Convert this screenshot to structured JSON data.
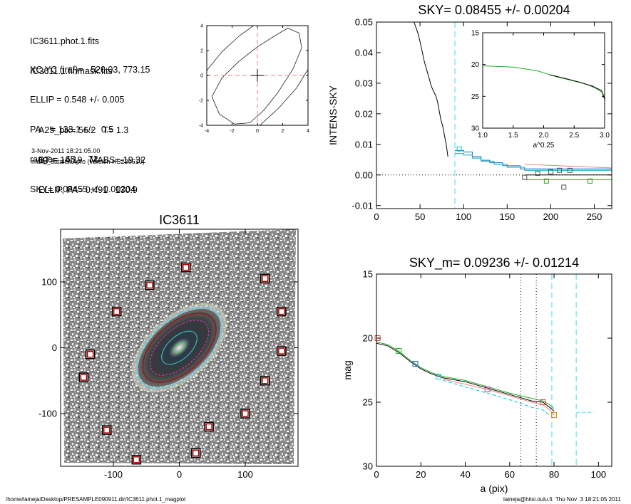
{
  "info": {
    "lines1": [
      "IC3611.phot.1.fits",
      "IC3611.1.finmask.fits"
    ],
    "lines2": [
      "XC,YC (iraf)=   520.03, 773.15",
      "ELLIP = 0.548 +/- 0.005",
      "PA    = 133.1 +/-   0.5",
      "range=   65.-   72.",
      "SKY= 0.08455 +/- 0.00204"
    ],
    "lines3": [
      "A25_pix= 56.2   T= 1.3",
      "BT=  14.19   MABS=-19.32",
      "ELLIP, PA= 0.491   130.9"
    ],
    "date": "3-Nov-2011 18:21:05.00",
    "program": "make_datalist0.pro (version HS230610)"
  },
  "footer": {
    "left": "/home/laineja/Desktop/PRESAMPLE090911.dir/IC3611.phot.1_magplot",
    "right": "laineja@hiisi.oulu.fi  Thu Nov  3 18:21:05 2011"
  },
  "chart_data": [
    {
      "id": "ellipse-contour",
      "type": "line",
      "title": "",
      "xlim": [
        -4,
        4
      ],
      "ylim": [
        -4,
        4
      ],
      "xticks": [
        "-4",
        "-2",
        "0",
        "2",
        "4"
      ],
      "yticks": [
        "-4",
        "-2",
        "0",
        "2",
        "4"
      ],
      "series": [
        {
          "points": [
            [
              -3.6,
              -1.7
            ],
            [
              -2.8,
              -0.2
            ],
            [
              -1.5,
              1.1
            ],
            [
              0,
              2.3
            ],
            [
              1.4,
              3.2
            ],
            [
              2.4,
              3.8
            ],
            [
              3.3,
              3.4
            ],
            [
              3.5,
              2.2
            ],
            [
              2.8,
              0.5
            ],
            [
              1.6,
              -1.4
            ],
            [
              0.5,
              -2.8
            ],
            [
              -0.6,
              -3.8
            ],
            [
              -1.8,
              -3.9
            ],
            [
              -3.0,
              -3.1
            ],
            [
              -3.6,
              -1.7
            ]
          ]
        },
        {
          "points": [
            [
              -4,
              0.4
            ],
            [
              -2.8,
              1.9
            ],
            [
              -1.4,
              3.2
            ],
            [
              -0.3,
              4.0
            ]
          ]
        },
        {
          "points": [
            [
              0.2,
              -4.0
            ],
            [
              1.7,
              -2.6
            ],
            [
              3.1,
              -1.0
            ],
            [
              4.0,
              0.5
            ]
          ]
        }
      ]
    },
    {
      "id": "intens-sky",
      "type": "line",
      "title": "SKY= 0.08455 +/- 0.00204",
      "ylabel": "INTENS-SKY",
      "xlim": [
        0,
        270
      ],
      "ylim": [
        -0.011,
        0.05
      ],
      "xticks": [
        "0",
        "50",
        "100",
        "150",
        "200",
        "250"
      ],
      "yticks": [
        "-0.01",
        "0.00",
        "0.01",
        "0.02",
        "0.03",
        "0.04",
        "0.05"
      ],
      "series": [
        {
          "color": "#000000",
          "points": [
            [
              43,
              0.05
            ],
            [
              48,
              0.046
            ],
            [
              52,
              0.041
            ],
            [
              55,
              0.037
            ],
            [
              58,
              0.034
            ],
            [
              61,
              0.031
            ],
            [
              63,
              0.029
            ],
            [
              66,
              0.027
            ],
            [
              68,
              0.026
            ],
            [
              70,
              0.024
            ],
            [
              72,
              0.021
            ],
            [
              74,
              0.018
            ],
            [
              76,
              0.016
            ],
            [
              78,
              0.013
            ],
            [
              80,
              0.01
            ],
            [
              82,
              0.006
            ]
          ]
        },
        {
          "color": "#1a66cc",
          "points": [
            [
              90,
              0.008
            ],
            [
              100,
              0.008
            ],
            [
              100,
              0.0075
            ],
            [
              110,
              0.0075
            ],
            [
              110,
              0.006
            ],
            [
              120,
              0.006
            ],
            [
              120,
              0.0048
            ],
            [
              130,
              0.0048
            ],
            [
              130,
              0.004
            ],
            [
              145,
              0.004
            ],
            [
              145,
              0.003
            ],
            [
              165,
              0.003
            ],
            [
              165,
              0.002
            ],
            [
              270,
              0.002
            ]
          ]
        },
        {
          "color": "#00aaaa",
          "points": [
            [
              90,
              0.007
            ],
            [
              100,
              0.007
            ],
            [
              100,
              0.0065
            ],
            [
              110,
              0.0065
            ],
            [
              110,
              0.0055
            ],
            [
              120,
              0.0055
            ],
            [
              120,
              0.0045
            ],
            [
              135,
              0.0045
            ],
            [
              135,
              0.0035
            ],
            [
              150,
              0.0035
            ],
            [
              150,
              0.0025
            ],
            [
              170,
              0.0025
            ],
            [
              170,
              0.0015
            ],
            [
              270,
              0.0015
            ]
          ]
        },
        {
          "color": "#f08080",
          "points": [
            [
              170,
              0.0035
            ],
            [
              270,
              0.0023
            ]
          ]
        },
        {
          "color": "#000000",
          "points": [
            [
              170,
              0.0
            ],
            [
              270,
              0.0
            ]
          ]
        },
        {
          "color": "#22aa22",
          "points": [
            [
              170,
              -0.0015
            ],
            [
              270,
              -0.0015
            ]
          ]
        }
      ],
      "markers": [
        {
          "x": 95,
          "y": 0.0085,
          "color": "#00cccc"
        },
        {
          "x": 170,
          "y": -0.0008,
          "color": "#555555"
        },
        {
          "x": 185,
          "y": 0.0005,
          "color": "#555555"
        },
        {
          "x": 200,
          "y": 0.001,
          "color": "#555555"
        },
        {
          "x": 210,
          "y": 0.0015,
          "color": "#555555"
        },
        {
          "x": 222,
          "y": 0.0015,
          "color": "#555555"
        },
        {
          "x": 215,
          "y": -0.004,
          "color": "#555555"
        },
        {
          "x": 195,
          "y": -0.002,
          "color": "#22aa22"
        },
        {
          "x": 245,
          "y": -0.002,
          "color": "#22aa22"
        }
      ],
      "vline_x": 90,
      "inset": {
        "xlabel": "a^0.25",
        "xlim": [
          1.0,
          3.0
        ],
        "ylim": [
          15,
          30
        ],
        "xticks": [
          "1.0",
          "1.5",
          "2.0",
          "2.5",
          "3.0"
        ],
        "yticks": [
          "15",
          "20",
          "25",
          "30"
        ],
        "series": [
          {
            "color": "#22aa22",
            "points": [
              [
                1.0,
                20.2
              ],
              [
                1.5,
                20.4
              ],
              [
                1.9,
                21.0
              ],
              [
                2.2,
                21.9
              ],
              [
                2.5,
                22.6
              ],
              [
                2.7,
                23.1
              ],
              [
                2.85,
                23.7
              ],
              [
                2.95,
                24.3
              ],
              [
                3.0,
                25.0
              ]
            ]
          },
          {
            "color": "#000000",
            "points": [
              [
                2.1,
                21.6
              ],
              [
                2.4,
                22.3
              ],
              [
                2.6,
                22.8
              ],
              [
                2.8,
                23.4
              ],
              [
                2.95,
                24.1
              ],
              [
                3.0,
                25.5
              ]
            ]
          }
        ]
      }
    },
    {
      "id": "image",
      "type": "scatter",
      "title": "IC3611",
      "xlim": [
        -180,
        180
      ],
      "ylim": [
        -180,
        180
      ],
      "xticks": [
        "-100",
        "0",
        "100"
      ],
      "yticks": [
        "-100",
        "0",
        "100"
      ],
      "markers": [
        [
          10,
          122
        ],
        [
          -45,
          95
        ],
        [
          130,
          105
        ],
        [
          -95,
          55
        ],
        [
          155,
          55
        ],
        [
          -135,
          -10
        ],
        [
          155,
          -5
        ],
        [
          -145,
          -45
        ],
        [
          130,
          -50
        ],
        [
          -110,
          -125
        ],
        [
          100,
          -100
        ],
        [
          -65,
          -170
        ],
        [
          25,
          -160
        ],
        [
          45,
          -120
        ]
      ]
    },
    {
      "id": "mag-profile",
      "type": "line",
      "title": "SKY_m=  0.09236 +/- 0.01214",
      "xlabel": "a (pix)",
      "ylabel": "mag",
      "xlim": [
        0,
        106
      ],
      "ylim": [
        15,
        30
      ],
      "xticks": [
        "0",
        "20",
        "40",
        "60",
        "80",
        "100"
      ],
      "yticks": [
        "15",
        "20",
        "25",
        "30"
      ],
      "series": [
        {
          "color": "#000000",
          "points": [
            [
              0,
              20.4
            ],
            [
              5,
              20.6
            ],
            [
              10,
              21.1
            ],
            [
              15,
              21.8
            ],
            [
              20,
              22.4
            ],
            [
              25,
              22.8
            ],
            [
              30,
              23.1
            ],
            [
              40,
              23.4
            ],
            [
              50,
              23.9
            ],
            [
              60,
              24.4
            ],
            [
              70,
              24.9
            ],
            [
              75,
              25.0
            ],
            [
              78,
              25.4
            ],
            [
              80,
              25.7
            ]
          ]
        },
        {
          "color": "#22aa22",
          "points": [
            [
              0,
              20.3
            ],
            [
              5,
              20.5
            ],
            [
              10,
              21.0
            ],
            [
              15,
              21.7
            ],
            [
              20,
              22.3
            ],
            [
              25,
              22.7
            ],
            [
              30,
              23.0
            ],
            [
              40,
              23.3
            ],
            [
              50,
              23.8
            ],
            [
              60,
              24.3
            ],
            [
              70,
              24.7
            ],
            [
              75,
              24.9
            ],
            [
              78,
              25.2
            ],
            [
              80,
              25.5
            ]
          ]
        },
        {
          "color": "#f08080",
          "points": [
            [
              30,
              23.2
            ],
            [
              40,
              23.6
            ],
            [
              50,
              24.0
            ],
            [
              60,
              24.5
            ],
            [
              70,
              25.0
            ],
            [
              75,
              25.2
            ],
            [
              78,
              25.6
            ],
            [
              80,
              26.0
            ]
          ]
        },
        {
          "color": "#00cccc",
          "points": [
            [
              30,
              23.3
            ],
            [
              40,
              23.8
            ],
            [
              50,
              24.3
            ],
            [
              60,
              24.8
            ],
            [
              70,
              25.4
            ],
            [
              75,
              25.6
            ],
            [
              78,
              26.0
            ]
          ]
        }
      ],
      "markers": [
        {
          "x": 0.5,
          "y": 20.0,
          "color": "#e04040"
        },
        {
          "x": 10,
          "y": 21.0,
          "color": "#22aa22"
        },
        {
          "x": 17.5,
          "y": 22.0,
          "color": "#1a66cc"
        },
        {
          "x": 28,
          "y": 23.0,
          "color": "#00cccc"
        },
        {
          "x": 50,
          "y": 24.0,
          "color": "#c040c0"
        },
        {
          "x": 75,
          "y": 25.0,
          "color": "#e04040"
        },
        {
          "x": 80,
          "y": 26.0,
          "color": "#cc9900"
        }
      ],
      "dotted_vlines": [
        65,
        72
      ],
      "dashed_vlines": [
        79,
        90
      ],
      "sky_level": {
        "x": [
          90,
          98
        ],
        "y": 25.8
      }
    }
  ]
}
